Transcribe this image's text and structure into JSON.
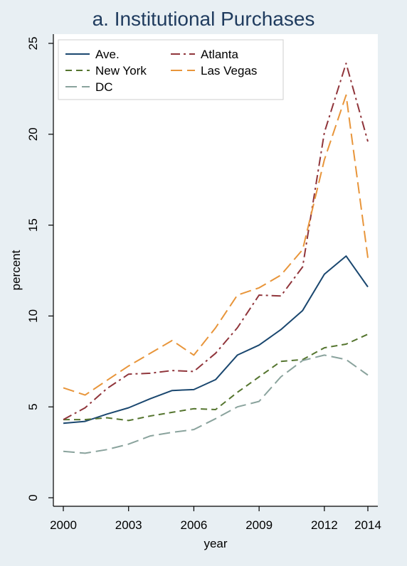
{
  "chart_data": {
    "type": "line",
    "title": "a. Institutional Purchases",
    "xlabel": "year",
    "ylabel": "percent",
    "xlim": [
      2000,
      2014
    ],
    "ylim": [
      0,
      25
    ],
    "xticks": [
      2000,
      2003,
      2006,
      2009,
      2012,
      2014
    ],
    "yticks": [
      0,
      5,
      10,
      15,
      20,
      25
    ],
    "grid": false,
    "legend_position": "top-left",
    "x": [
      2000,
      2001,
      2002,
      2003,
      2004,
      2005,
      2006,
      2007,
      2008,
      2009,
      2010,
      2011,
      2012,
      2013,
      2014
    ],
    "series": [
      {
        "name": "Ave.",
        "color": "#1a476f",
        "dash": "solid",
        "values": [
          4.1,
          4.2,
          4.6,
          4.95,
          5.45,
          5.9,
          5.95,
          6.5,
          7.85,
          8.4,
          9.25,
          10.3,
          12.3,
          13.3,
          11.6
        ]
      },
      {
        "name": "New York",
        "color": "#55752f",
        "dash": "dash",
        "values": [
          4.3,
          4.3,
          4.4,
          4.25,
          4.5,
          4.7,
          4.9,
          4.85,
          5.8,
          6.65,
          7.5,
          7.6,
          8.25,
          8.45,
          9.0
        ]
      },
      {
        "name": "DC",
        "color": "#8aa39d",
        "dash": "longdash",
        "values": [
          2.55,
          2.45,
          2.65,
          2.95,
          3.4,
          3.6,
          3.75,
          4.35,
          5.0,
          5.3,
          6.65,
          7.55,
          7.85,
          7.6,
          6.75
        ]
      },
      {
        "name": "Atlanta",
        "color": "#90353b",
        "dash": "dashdot",
        "values": [
          4.3,
          4.95,
          6.0,
          6.8,
          6.85,
          7.0,
          6.95,
          7.95,
          9.35,
          11.15,
          11.1,
          12.7,
          20.1,
          23.9,
          19.6
        ]
      },
      {
        "name": "Las Vegas",
        "color": "#e8953a",
        "dash": "longdash",
        "values": [
          6.05,
          5.65,
          6.45,
          7.25,
          7.95,
          8.65,
          7.85,
          9.35,
          11.15,
          11.55,
          12.25,
          13.65,
          18.6,
          22.15,
          13.2
        ]
      }
    ]
  }
}
